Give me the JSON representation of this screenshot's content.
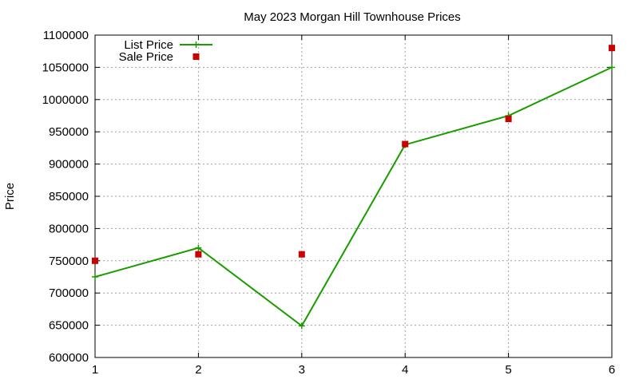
{
  "chart_data": {
    "type": "line",
    "title": "May 2023 Morgan Hill Townhouse Prices",
    "xlabel": "",
    "ylabel": "Price",
    "xlim": [
      1,
      6
    ],
    "ylim": [
      600000,
      1100000
    ],
    "x_ticks": [
      "1",
      "2",
      "3",
      "4",
      "5",
      "6"
    ],
    "y_ticks": [
      "600000",
      "650000",
      "700000",
      "750000",
      "800000",
      "850000",
      "900000",
      "950000",
      "1000000",
      "1050000",
      "1100000"
    ],
    "grid": true,
    "legend_position": "top-left",
    "x": [
      1,
      2,
      3,
      4,
      5,
      6
    ],
    "series": [
      {
        "name": "List Price",
        "style": "line-with-plus-markers",
        "color": "#1a9c00",
        "values": [
          725000,
          770000,
          649000,
          930000,
          975000,
          1050000
        ]
      },
      {
        "name": "Sale Price",
        "style": "square-points",
        "color": "#cc0000",
        "values": [
          750000,
          760000,
          760000,
          931000,
          970000,
          1080000
        ]
      }
    ]
  }
}
